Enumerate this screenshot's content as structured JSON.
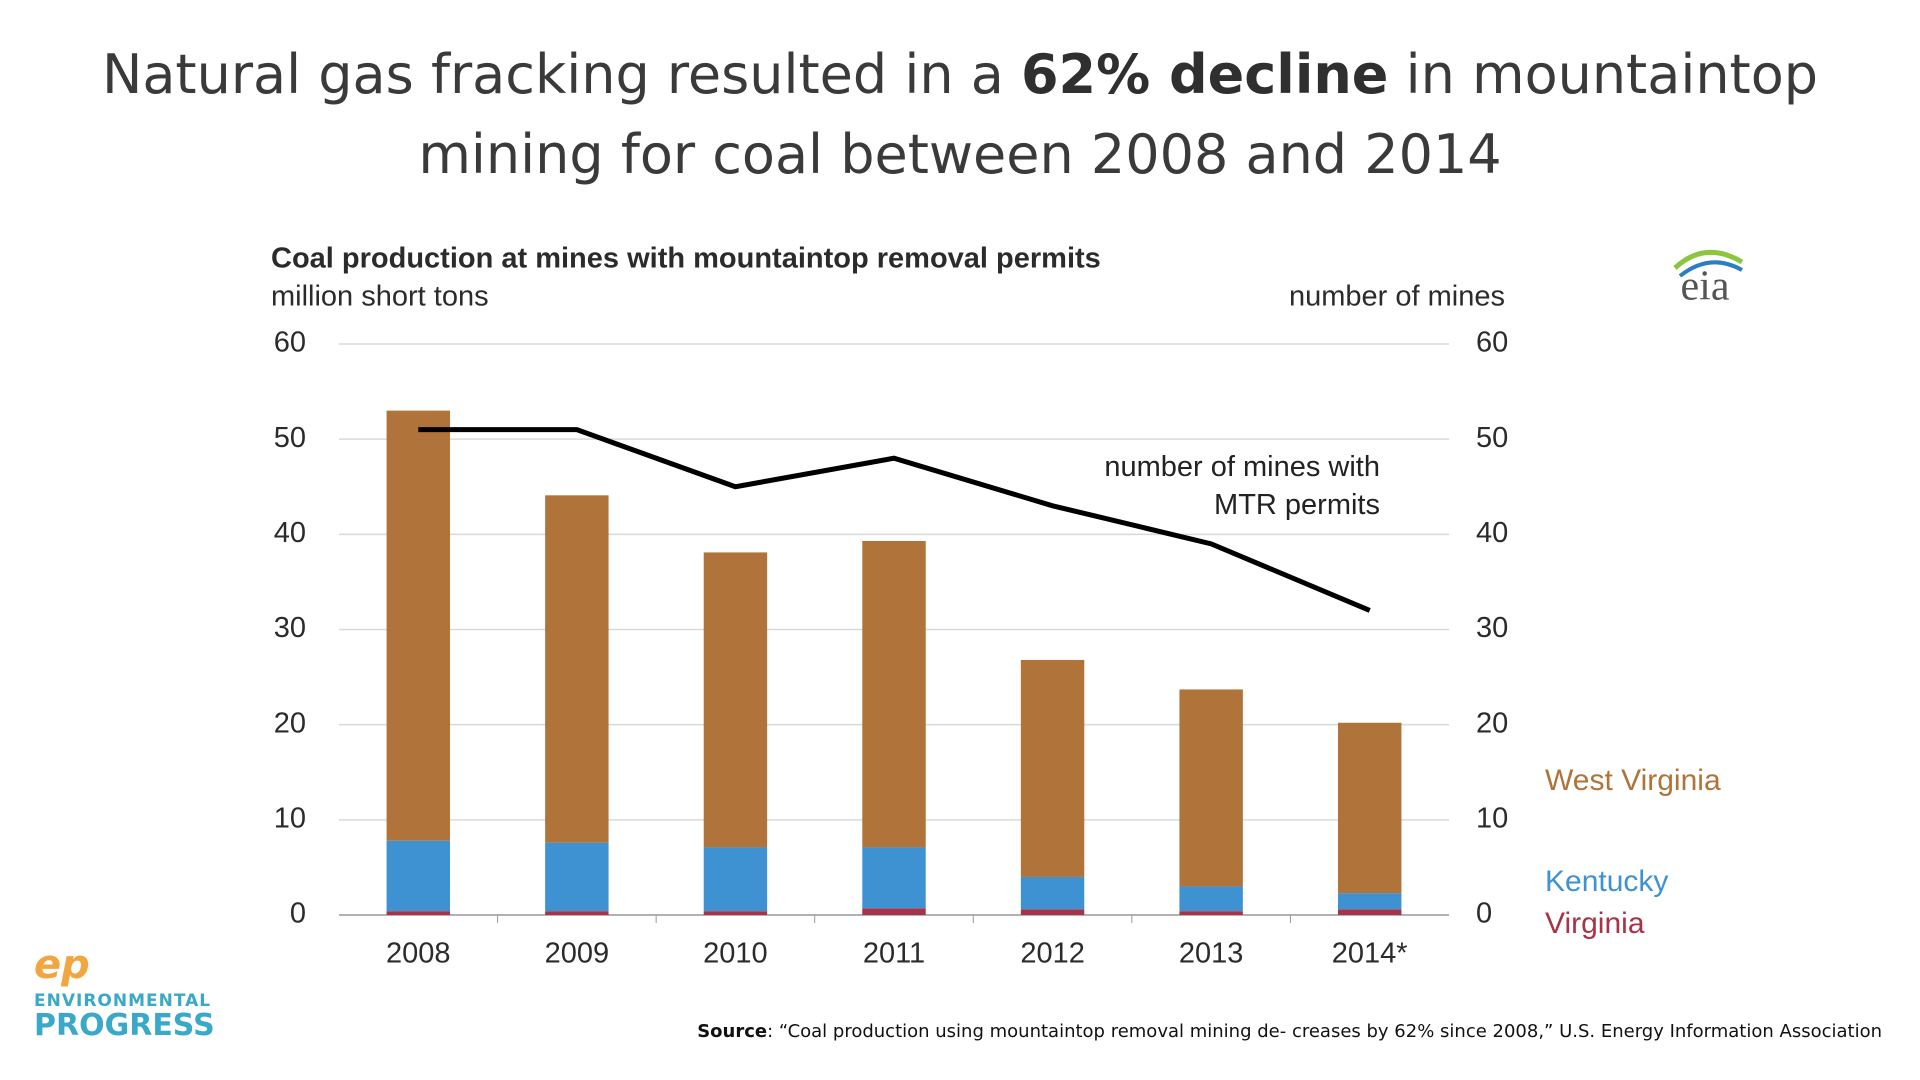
{
  "slide": {
    "title": {
      "start": "Natural gas fracking resulted in a ",
      "bold": "62% decline",
      "end": " in mountaintop mining for coal between 2008 and 2014"
    },
    "source": {
      "label": "Source",
      "text": ": “Coal production using mountaintop removal mining de- creases by 62% since 2008,” U.S. Energy Information Association"
    },
    "logo": {
      "icon": "ep",
      "line1": "ENVIRONMENTAL",
      "line2": "PROGRESS"
    },
    "chart_logo": "eia"
  },
  "chart_data": {
    "type": "bar",
    "stacked": true,
    "title": "Coal production at mines with mountaintop removal permits",
    "ylabel": "million short tons",
    "y2label": "number of mines",
    "categories": [
      "2008",
      "2009",
      "2010",
      "2011",
      "2012",
      "2013",
      "2014*"
    ],
    "series": [
      {
        "name": "Virginia",
        "color": "#a83246",
        "values": [
          0.4,
          0.4,
          0.4,
          0.7,
          0.6,
          0.4,
          0.6
        ]
      },
      {
        "name": "Kentucky",
        "color": "#3f92d2",
        "values": [
          7.4,
          7.2,
          6.7,
          6.4,
          3.4,
          2.6,
          1.7
        ]
      },
      {
        "name": "West Virginia",
        "color": "#b07339",
        "values": [
          45.2,
          36.5,
          31.0,
          32.2,
          22.8,
          20.7,
          17.9
        ]
      },
      {
        "name": "number of mines with MTR permits",
        "type": "line",
        "axis": "y2",
        "color": "#000000",
        "values": [
          51,
          51,
          45,
          48,
          43,
          39,
          32
        ]
      }
    ],
    "ylim": [
      0,
      60
    ],
    "yticks": [
      0,
      10,
      20,
      30,
      40,
      50,
      60
    ],
    "y2lim": [
      0,
      60
    ],
    "y2ticks": [
      0,
      10,
      20,
      30,
      40,
      50,
      60
    ],
    "grid": true
  }
}
